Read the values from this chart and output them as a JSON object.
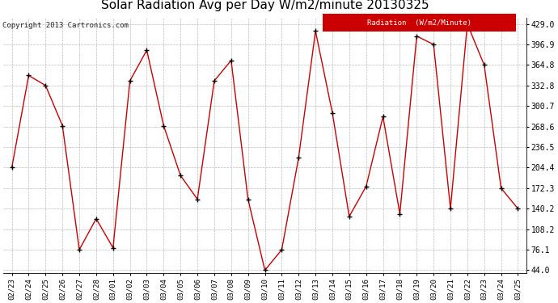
{
  "title": "Solar Radiation Avg per Day W/m2/minute 20130325",
  "copyright": "Copyright 2013 Cartronics.com",
  "legend_label": "Radiation  (W/m2/Minute)",
  "dates": [
    "02/23",
    "02/24",
    "02/25",
    "02/26",
    "02/27",
    "02/28",
    "03/01",
    "03/02",
    "03/03",
    "03/04",
    "03/05",
    "03/06",
    "03/07",
    "03/08",
    "03/09",
    "03/10",
    "03/11",
    "03/12",
    "03/13",
    "03/14",
    "03/15",
    "03/16",
    "03/17",
    "03/18",
    "03/19",
    "03/20",
    "03/21",
    "03/22",
    "03/23",
    "03/24",
    "03/25"
  ],
  "values": [
    204.4,
    348.5,
    332.8,
    270.0,
    76.1,
    124.5,
    79.0,
    340.0,
    388.0,
    270.0,
    192.0,
    155.0,
    340.0,
    372.0,
    155.0,
    44.0,
    76.1,
    220.0,
    418.0,
    290.0,
    128.0,
    175.0,
    284.0,
    132.0,
    410.0,
    396.9,
    140.2,
    429.0,
    364.8,
    172.3,
    140.2
  ],
  "ymin": 44.0,
  "ymax": 429.0,
  "yticks": [
    44.0,
    76.1,
    108.2,
    140.2,
    172.3,
    204.4,
    236.5,
    268.6,
    300.7,
    332.8,
    364.8,
    396.9,
    429.0
  ],
  "line_color": "#cc0000",
  "marker_color": "#000000",
  "bg_color": "#ffffff",
  "plot_bg_color": "#ffffff",
  "grid_color": "#bbbbbb",
  "title_fontsize": 11,
  "legend_bg": "#cc0000",
  "legend_text_color": "#ffffff"
}
